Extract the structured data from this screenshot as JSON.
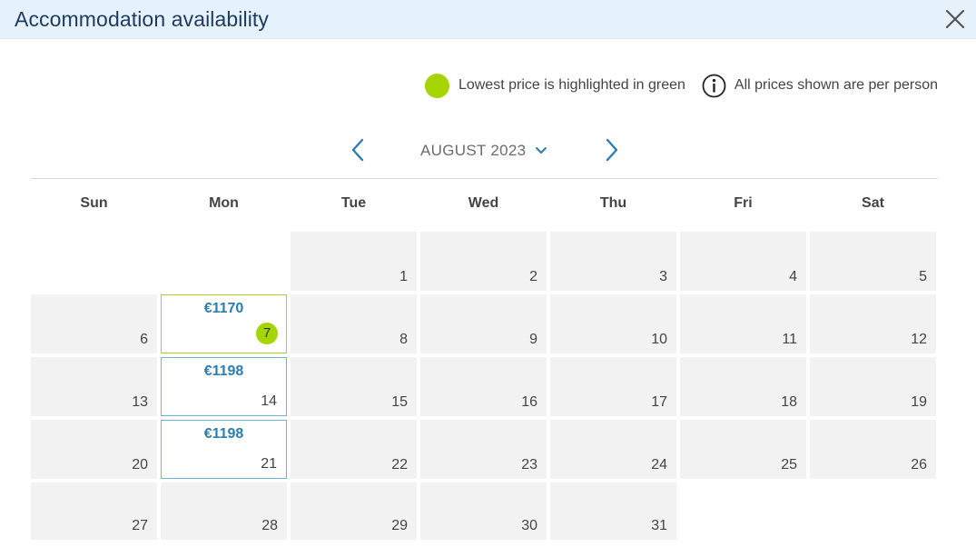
{
  "dialog": {
    "title": "Accommodation availability"
  },
  "legend": {
    "lowest_label": "Lowest price is highlighted in green",
    "info_label": "All prices shown are per person",
    "lowest_color": "#a5d500"
  },
  "navigation": {
    "month": "AUGUST 2023"
  },
  "weekdays": [
    "Sun",
    "Mon",
    "Tue",
    "Wed",
    "Thu",
    "Fri",
    "Sat"
  ],
  "calendar": {
    "days": [
      {
        "day": "1"
      },
      {
        "day": "2"
      },
      {
        "day": "3"
      },
      {
        "day": "4"
      },
      {
        "day": "5"
      },
      {
        "day": "6"
      },
      {
        "day": "7",
        "price": "€1170",
        "lowest": true
      },
      {
        "day": "8"
      },
      {
        "day": "9"
      },
      {
        "day": "10"
      },
      {
        "day": "11"
      },
      {
        "day": "12"
      },
      {
        "day": "13"
      },
      {
        "day": "14",
        "price": "€1198"
      },
      {
        "day": "15"
      },
      {
        "day": "16"
      },
      {
        "day": "17"
      },
      {
        "day": "18"
      },
      {
        "day": "19"
      },
      {
        "day": "20"
      },
      {
        "day": "21",
        "price": "€1198"
      },
      {
        "day": "22"
      },
      {
        "day": "23"
      },
      {
        "day": "24"
      },
      {
        "day": "25"
      },
      {
        "day": "26"
      },
      {
        "day": "27"
      },
      {
        "day": "28"
      },
      {
        "day": "29"
      },
      {
        "day": "30"
      },
      {
        "day": "31"
      }
    ]
  },
  "colors": {
    "accent": "#2a7fb0",
    "price_border": "#69b6d6",
    "lowest_border": "#b5cc2a"
  }
}
